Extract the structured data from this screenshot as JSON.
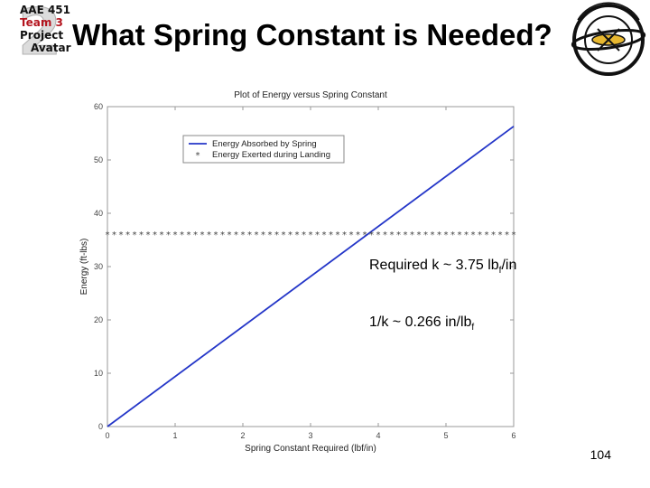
{
  "logo": {
    "lines": [
      "AAE 451",
      "Team 3",
      "Project",
      "Avatar"
    ]
  },
  "slide": {
    "title": "What Spring Constant is Needed?",
    "page_number": "104"
  },
  "annotations": {
    "required_k": {
      "main": "Required k ~ 3.75 lb",
      "sub": "f",
      "tail": "/in"
    },
    "inverse_k": {
      "main": "1/k ~ 0.266 in/lb",
      "sub": "f"
    }
  },
  "colors": {
    "line": "#2436c8",
    "marker": "#444444",
    "logo_red": "#b4141e",
    "logo_gold": "#e8b830"
  },
  "chart_data": {
    "type": "line",
    "title": "Plot of Energy versus Spring Constant",
    "xlabel": "Spring Constant Required (lbf/in)",
    "ylabel": "Energy (ft-lbs)",
    "xlim": [
      0,
      6
    ],
    "ylim": [
      0,
      60
    ],
    "xticks": [
      0,
      1,
      2,
      3,
      4,
      5,
      6
    ],
    "yticks": [
      0,
      10,
      20,
      30,
      40,
      50,
      60
    ],
    "grid": false,
    "legend_position": "top-left",
    "series": [
      {
        "name": "Energy Absorbed by Spring",
        "style": "line",
        "x": [
          0,
          6
        ],
        "y": [
          0,
          56.3
        ]
      },
      {
        "name": "Energy Exerted during Landing",
        "style": "star-markers",
        "x": [
          0,
          0.1,
          0.2,
          0.3,
          0.4,
          0.5,
          0.6,
          0.7,
          0.8,
          0.9,
          1.0,
          1.1,
          1.2,
          1.3,
          1.4,
          1.5,
          1.6,
          1.7,
          1.8,
          1.9,
          2.0,
          2.1,
          2.2,
          2.3,
          2.4,
          2.5,
          2.6,
          2.7,
          2.8,
          2.9,
          3.0,
          3.1,
          3.2,
          3.3,
          3.4,
          3.5,
          3.6,
          3.7,
          3.8,
          3.9,
          4.0,
          4.1,
          4.2,
          4.3,
          4.4,
          4.5,
          4.6,
          4.7,
          4.8,
          4.9,
          5.0,
          5.1,
          5.2,
          5.3,
          5.4,
          5.5,
          5.6,
          5.7,
          5.8,
          5.9,
          6.0
        ],
        "y_constant": 36.1
      }
    ]
  }
}
